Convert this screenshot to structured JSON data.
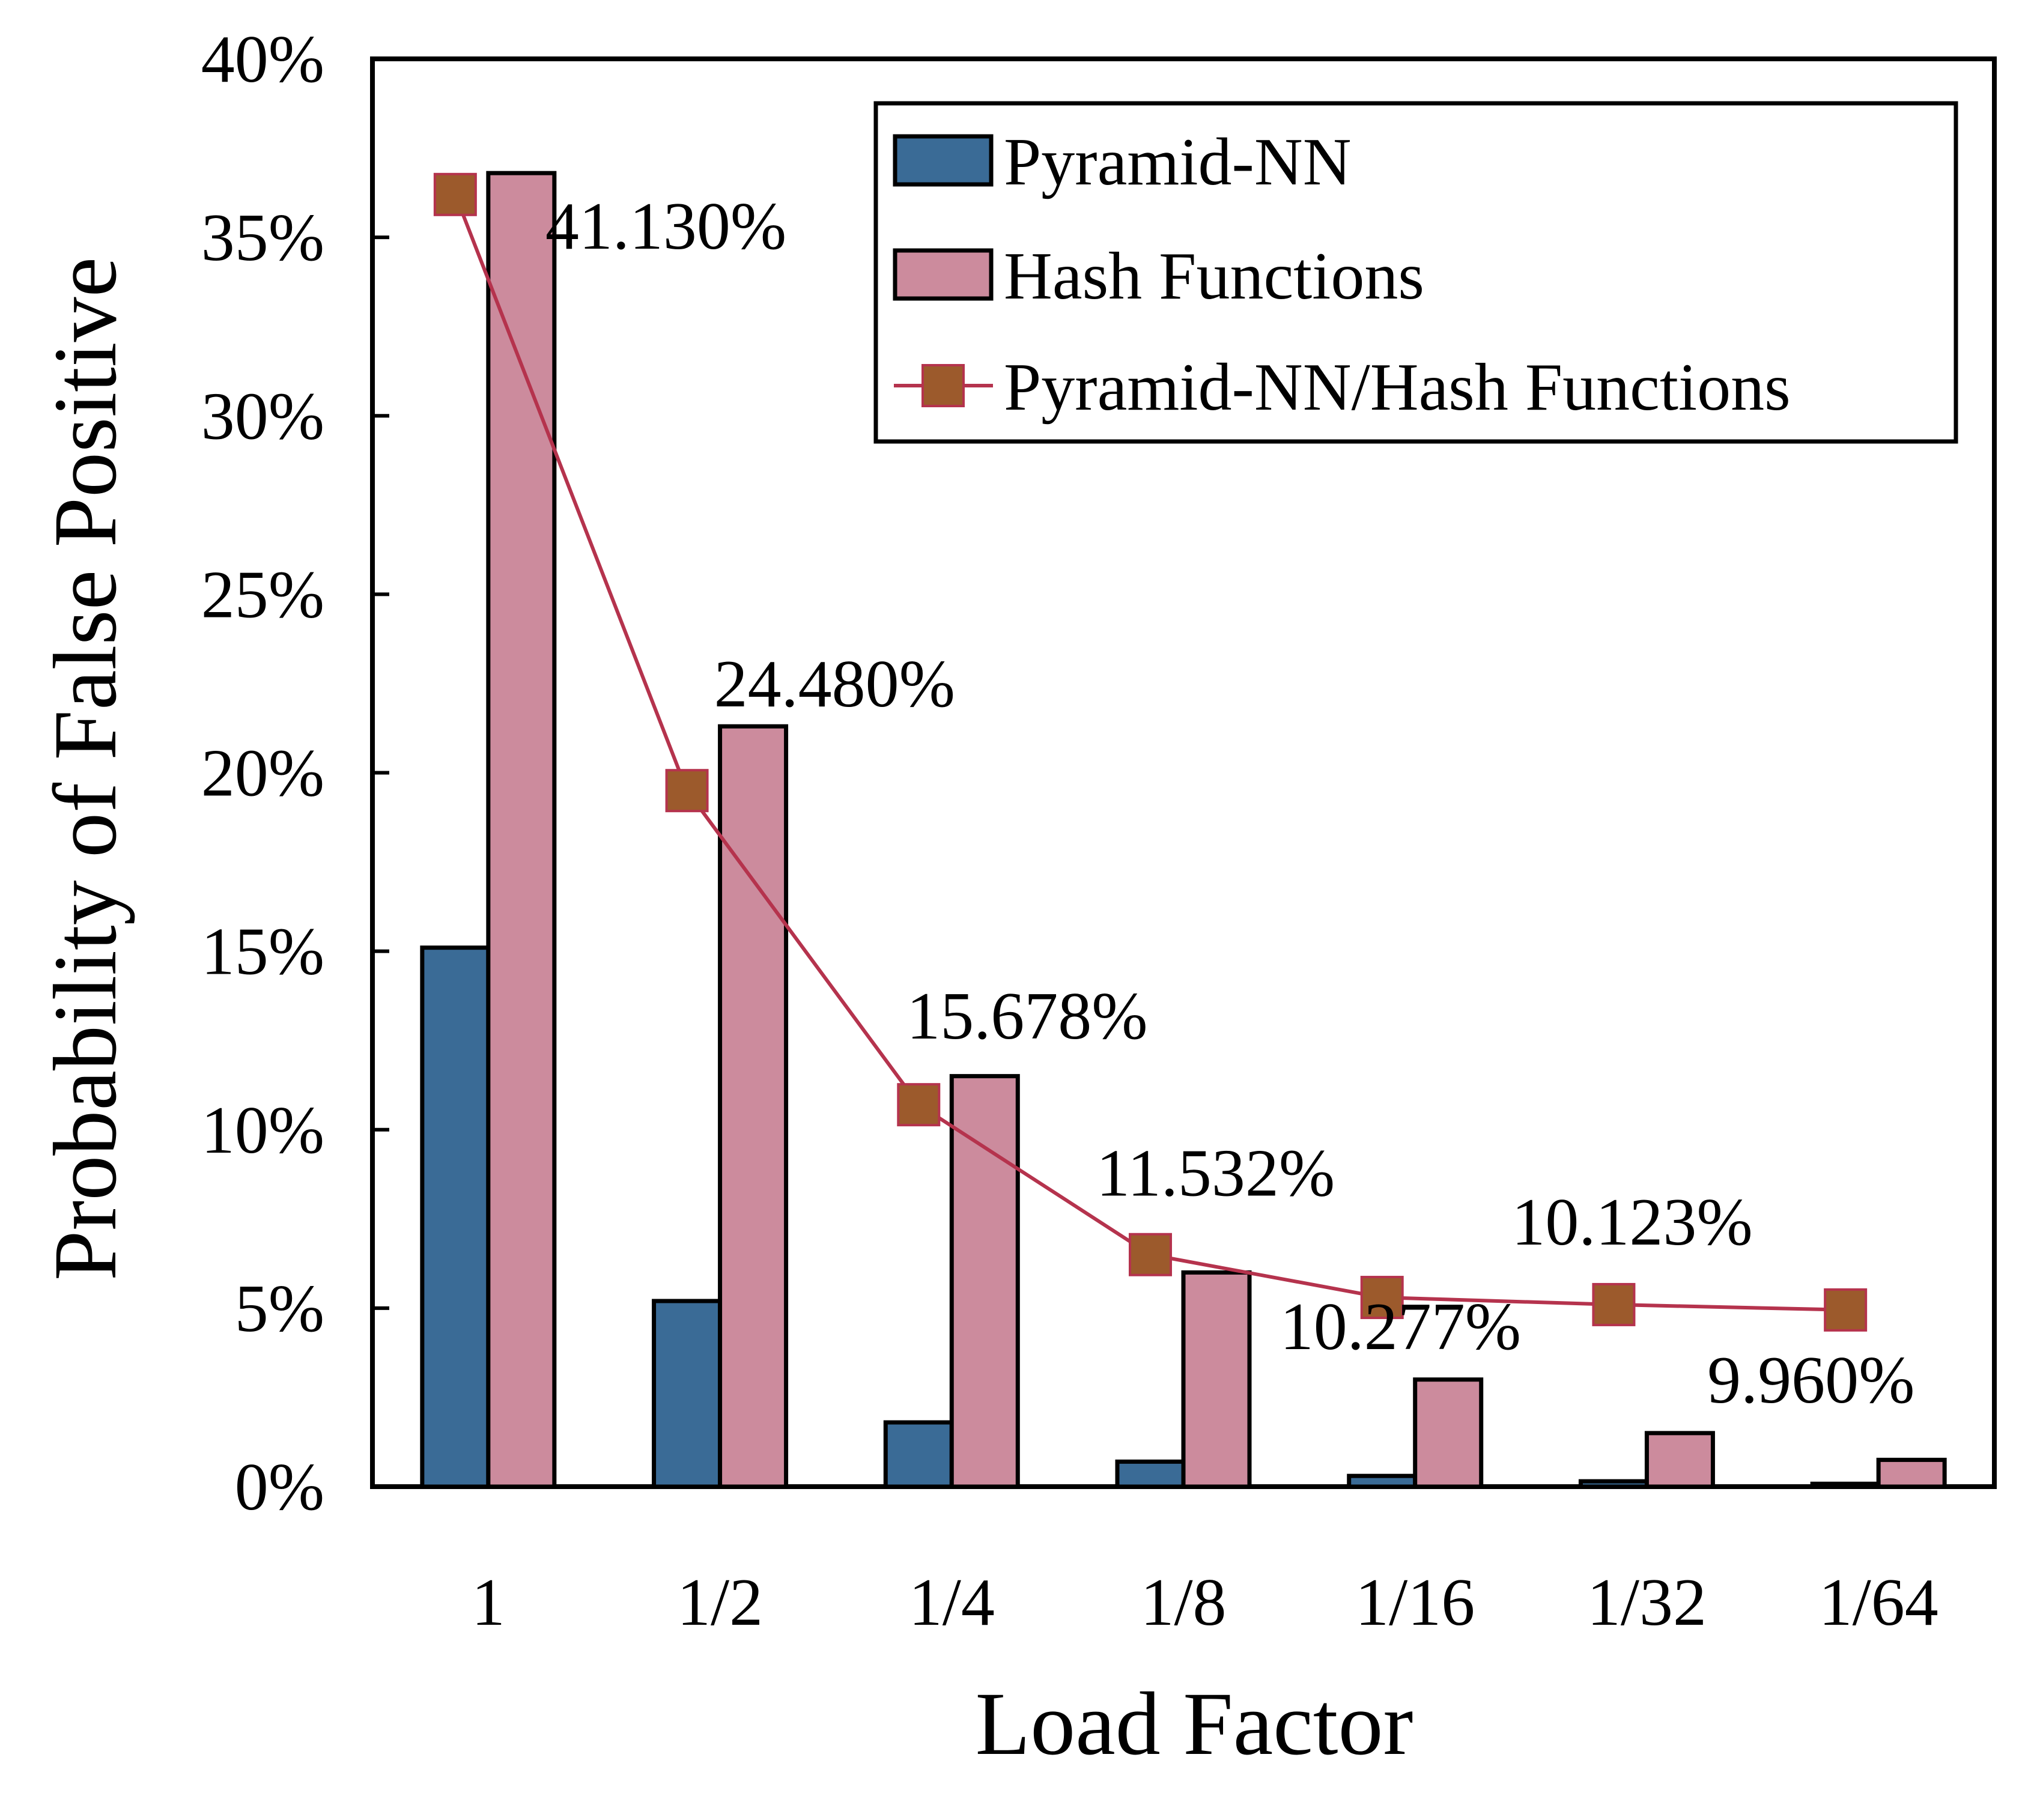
{
  "chart_data": {
    "type": "bar",
    "xlabel": "Load Factor",
    "ylabel": "Probability of False Positive",
    "categories": [
      "1",
      "1/2",
      "1/4",
      "1/8",
      "1/16",
      "1/32",
      "1/64"
    ],
    "ylim": [
      0,
      40
    ],
    "yticks": [
      0,
      5,
      10,
      15,
      20,
      25,
      30,
      35,
      40
    ],
    "ytick_labels": [
      "0%",
      "5%",
      "10%",
      "15%",
      "20%",
      "25%",
      "30%",
      "35%",
      "40%"
    ],
    "series": [
      {
        "name": "Pyramid-NN",
        "kind": "bar",
        "values": [
          15.1,
          5.2,
          1.8,
          0.7,
          0.3,
          0.15,
          0.08
        ],
        "color": "#3a6b96"
      },
      {
        "name": "Hash Functions",
        "kind": "bar",
        "values": [
          36.8,
          21.3,
          11.5,
          6.0,
          3.0,
          1.5,
          0.75
        ],
        "color": "#cc8b9d"
      },
      {
        "name": "Pyramid-NN/Hash Functions",
        "kind": "line",
        "values": [
          36.2,
          19.5,
          10.7,
          6.5,
          5.3,
          5.1,
          4.95
        ],
        "line_color": "#b5334d",
        "marker_color": "#9c5a2c"
      }
    ],
    "data_labels": [
      "41.130%",
      "24.480%",
      "15.678%",
      "11.532%",
      "10.277%",
      "10.123%",
      "9.960%"
    ],
    "legend_position": "top-right",
    "grid": false
  }
}
